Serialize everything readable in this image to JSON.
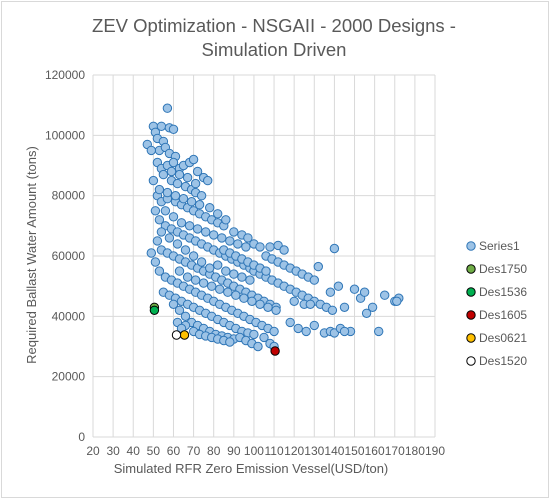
{
  "chart_data": {
    "type": "scatter",
    "title_line1": "ZEV Optimization - NSGAII - 2000 Designs -",
    "title_line2": "Simulation Driven",
    "xlabel": "Simulated RFR Zero Emission Vessel(USD/ton)",
    "ylabel": "Required Ballast Water Amount (tons)",
    "xlim": [
      20,
      190
    ],
    "ylim": [
      0,
      120000
    ],
    "x_ticks": [
      "20",
      "30",
      "40",
      "50",
      "60",
      "70",
      "80",
      "90",
      "100",
      "110",
      "120",
      "130",
      "140",
      "150",
      "160",
      "170",
      "180",
      "190"
    ],
    "y_ticks": [
      "0",
      "20000",
      "40000",
      "60000",
      "80000",
      "100000",
      "120000"
    ],
    "legend_position": "right",
    "series": [
      {
        "name": "Series1",
        "color": "#9dc3e6",
        "stroke": "#2e75b6",
        "points": [
          [
            47,
            97000
          ],
          [
            50,
            103000
          ],
          [
            51,
            101000
          ],
          [
            54,
            103000
          ],
          [
            57,
            109000
          ],
          [
            58,
            102500
          ],
          [
            60,
            102000
          ],
          [
            52,
            99000
          ],
          [
            55,
            98000
          ],
          [
            53,
            95000
          ],
          [
            56,
            96000
          ],
          [
            58,
            94000
          ],
          [
            61,
            93000
          ],
          [
            49,
            95000
          ],
          [
            52,
            91000
          ],
          [
            54,
            89000
          ],
          [
            57,
            90000
          ],
          [
            60,
            91000
          ],
          [
            63,
            89000
          ],
          [
            65,
            90000
          ],
          [
            68,
            91000
          ],
          [
            70,
            92000
          ],
          [
            72,
            88000
          ],
          [
            75,
            86000
          ],
          [
            77,
            85000
          ],
          [
            55,
            87000
          ],
          [
            59,
            85000
          ],
          [
            62,
            84000
          ],
          [
            66,
            83000
          ],
          [
            69,
            82000
          ],
          [
            71,
            81000
          ],
          [
            74,
            80000
          ],
          [
            50,
            85000
          ],
          [
            52,
            80000
          ],
          [
            54,
            78000
          ],
          [
            57,
            79000
          ],
          [
            61,
            78000
          ],
          [
            64,
            77000
          ],
          [
            67,
            76000
          ],
          [
            70,
            75000
          ],
          [
            73,
            74000
          ],
          [
            76,
            73000
          ],
          [
            79,
            72000
          ],
          [
            82,
            71000
          ],
          [
            85,
            70000
          ],
          [
            51,
            75000
          ],
          [
            53,
            72000
          ],
          [
            56,
            70000
          ],
          [
            59,
            69000
          ],
          [
            62,
            68000
          ],
          [
            65,
            67000
          ],
          [
            68,
            66000
          ],
          [
            71,
            65000
          ],
          [
            74,
            64000
          ],
          [
            77,
            63000
          ],
          [
            80,
            62000
          ],
          [
            83,
            61000
          ],
          [
            86,
            60000
          ],
          [
            89,
            59000
          ],
          [
            92,
            58000
          ],
          [
            95,
            57000
          ],
          [
            98,
            56000
          ],
          [
            100,
            64000
          ],
          [
            103,
            63000
          ],
          [
            106,
            60000
          ],
          [
            109,
            59000
          ],
          [
            112,
            58000
          ],
          [
            115,
            57000
          ],
          [
            118,
            56000
          ],
          [
            121,
            55000
          ],
          [
            124,
            54000
          ],
          [
            127,
            53000
          ],
          [
            130,
            52000
          ],
          [
            108,
            63000
          ],
          [
            112,
            63500
          ],
          [
            115,
            62000
          ],
          [
            100,
            55000
          ],
          [
            103,
            54000
          ],
          [
            106,
            53000
          ],
          [
            109,
            52000
          ],
          [
            112,
            51000
          ],
          [
            115,
            50000
          ],
          [
            118,
            49000
          ],
          [
            121,
            48000
          ],
          [
            124,
            47000
          ],
          [
            127,
            46000
          ],
          [
            130,
            45000
          ],
          [
            133,
            44000
          ],
          [
            136,
            43000
          ],
          [
            139,
            42000
          ],
          [
            142,
            50000
          ],
          [
            145,
            43000
          ],
          [
            148,
            35000
          ],
          [
            150,
            49000
          ],
          [
            153,
            46000
          ],
          [
            156,
            41000
          ],
          [
            159,
            43000
          ],
          [
            162,
            35000
          ],
          [
            165,
            47000
          ],
          [
            170,
            45000
          ],
          [
            172,
            46000
          ],
          [
            171,
            45000
          ],
          [
            155,
            48000
          ],
          [
            140,
            62500
          ],
          [
            132,
            56500
          ],
          [
            125,
            44000
          ],
          [
            128,
            44000
          ],
          [
            120,
            45000
          ],
          [
            118,
            38000
          ],
          [
            122,
            36000
          ],
          [
            126,
            35000
          ],
          [
            130,
            37000
          ],
          [
            135,
            34500
          ],
          [
            138,
            35000
          ],
          [
            140,
            34500
          ],
          [
            143,
            36000
          ],
          [
            145,
            35000
          ],
          [
            138,
            48000
          ],
          [
            52,
            65000
          ],
          [
            54,
            62000
          ],
          [
            57,
            61000
          ],
          [
            60,
            60000
          ],
          [
            63,
            59000
          ],
          [
            66,
            58000
          ],
          [
            69,
            57000
          ],
          [
            72,
            56000
          ],
          [
            75,
            55000
          ],
          [
            78,
            54000
          ],
          [
            81,
            53000
          ],
          [
            84,
            52000
          ],
          [
            87,
            51000
          ],
          [
            90,
            50000
          ],
          [
            93,
            49000
          ],
          [
            96,
            48000
          ],
          [
            99,
            47000
          ],
          [
            102,
            46000
          ],
          [
            105,
            45000
          ],
          [
            108,
            44000
          ],
          [
            111,
            43000
          ],
          [
            49,
            61000
          ],
          [
            51,
            58000
          ],
          [
            53,
            55000
          ],
          [
            56,
            53000
          ],
          [
            59,
            52000
          ],
          [
            62,
            51000
          ],
          [
            65,
            50000
          ],
          [
            68,
            49000
          ],
          [
            71,
            48000
          ],
          [
            74,
            47000
          ],
          [
            77,
            46000
          ],
          [
            80,
            45000
          ],
          [
            83,
            44000
          ],
          [
            86,
            43000
          ],
          [
            89,
            42000
          ],
          [
            92,
            41000
          ],
          [
            95,
            40000
          ],
          [
            98,
            39000
          ],
          [
            101,
            38000
          ],
          [
            104,
            37000
          ],
          [
            107,
            36000
          ],
          [
            110,
            35000
          ],
          [
            55,
            48000
          ],
          [
            58,
            47000
          ],
          [
            61,
            46000
          ],
          [
            64,
            45000
          ],
          [
            67,
            44000
          ],
          [
            70,
            43000
          ],
          [
            73,
            42000
          ],
          [
            76,
            41000
          ],
          [
            79,
            40000
          ],
          [
            82,
            39000
          ],
          [
            85,
            38000
          ],
          [
            88,
            37000
          ],
          [
            91,
            36000
          ],
          [
            94,
            35000
          ],
          [
            97,
            34500
          ],
          [
            100,
            34000
          ],
          [
            60,
            44000
          ],
          [
            63,
            42000
          ],
          [
            66,
            40000
          ],
          [
            69,
            38000
          ],
          [
            72,
            37000
          ],
          [
            75,
            36000
          ],
          [
            78,
            35000
          ],
          [
            81,
            34000
          ],
          [
            84,
            33500
          ],
          [
            87,
            33000
          ],
          [
            90,
            32500
          ],
          [
            93,
            33000
          ],
          [
            96,
            32000
          ],
          [
            99,
            31000
          ],
          [
            102,
            30000
          ],
          [
            105,
            33000
          ],
          [
            108,
            31000
          ],
          [
            110,
            30000
          ],
          [
            54,
            68000
          ],
          [
            58,
            66000
          ],
          [
            62,
            64000
          ],
          [
            66,
            62000
          ],
          [
            70,
            60000
          ],
          [
            74,
            58000
          ],
          [
            78,
            56000
          ],
          [
            82,
            57000
          ],
          [
            86,
            55000
          ],
          [
            90,
            54000
          ],
          [
            94,
            53000
          ],
          [
            98,
            52000
          ],
          [
            56,
            75000
          ],
          [
            60,
            73000
          ],
          [
            64,
            71000
          ],
          [
            68,
            70000
          ],
          [
            72,
            69000
          ],
          [
            76,
            68000
          ],
          [
            80,
            67000
          ],
          [
            84,
            66000
          ],
          [
            88,
            65000
          ],
          [
            92,
            64000
          ],
          [
            96,
            63000
          ],
          [
            53,
            82000
          ],
          [
            57,
            81000
          ],
          [
            61,
            80000
          ],
          [
            65,
            79000
          ],
          [
            69,
            78000
          ],
          [
            73,
            77000
          ],
          [
            59,
            88000
          ],
          [
            63,
            87000
          ],
          [
            67,
            86000
          ],
          [
            71,
            84000
          ],
          [
            78,
            76000
          ],
          [
            82,
            74000
          ],
          [
            86,
            72000
          ],
          [
            90,
            68000
          ],
          [
            94,
            67000
          ],
          [
            97,
            66000
          ],
          [
            85,
            62000
          ],
          [
            88,
            61000
          ],
          [
            91,
            60000
          ],
          [
            94,
            59000
          ],
          [
            97,
            58000
          ],
          [
            100,
            57000
          ],
          [
            103,
            56000
          ],
          [
            106,
            55000
          ],
          [
            63,
            55000
          ],
          [
            67,
            53000
          ],
          [
            71,
            52000
          ],
          [
            75,
            51000
          ],
          [
            79,
            50000
          ],
          [
            83,
            49000
          ],
          [
            87,
            48000
          ],
          [
            91,
            47000
          ],
          [
            95,
            46000
          ],
          [
            99,
            45000
          ],
          [
            103,
            44000
          ],
          [
            107,
            43000
          ],
          [
            111,
            42000
          ],
          [
            66,
            37000
          ],
          [
            70,
            35000
          ],
          [
            73,
            34000
          ],
          [
            76,
            33500
          ],
          [
            79,
            33000
          ],
          [
            82,
            32500
          ],
          [
            85,
            32000
          ],
          [
            88,
            31500
          ],
          [
            62,
            38000
          ],
          [
            64,
            36000
          ]
        ]
      },
      {
        "name": "Des1750",
        "color": "#70ad47",
        "stroke": "#000000",
        "points": [
          [
            50.5,
            43000
          ]
        ]
      },
      {
        "name": "Des1536",
        "color": "#00b050",
        "stroke": "#000000",
        "points": [
          [
            50.5,
            42000
          ]
        ]
      },
      {
        "name": "Des1605",
        "color": "#c00000",
        "stroke": "#000000",
        "points": [
          [
            110.5,
            28500
          ]
        ]
      },
      {
        "name": "Des0621",
        "color": "#ffc000",
        "stroke": "#000000",
        "points": [
          [
            65.5,
            33800
          ]
        ]
      },
      {
        "name": "Des1520",
        "color": "#ffffff",
        "stroke": "#000000",
        "points": [
          [
            61.5,
            33800
          ]
        ]
      }
    ]
  }
}
